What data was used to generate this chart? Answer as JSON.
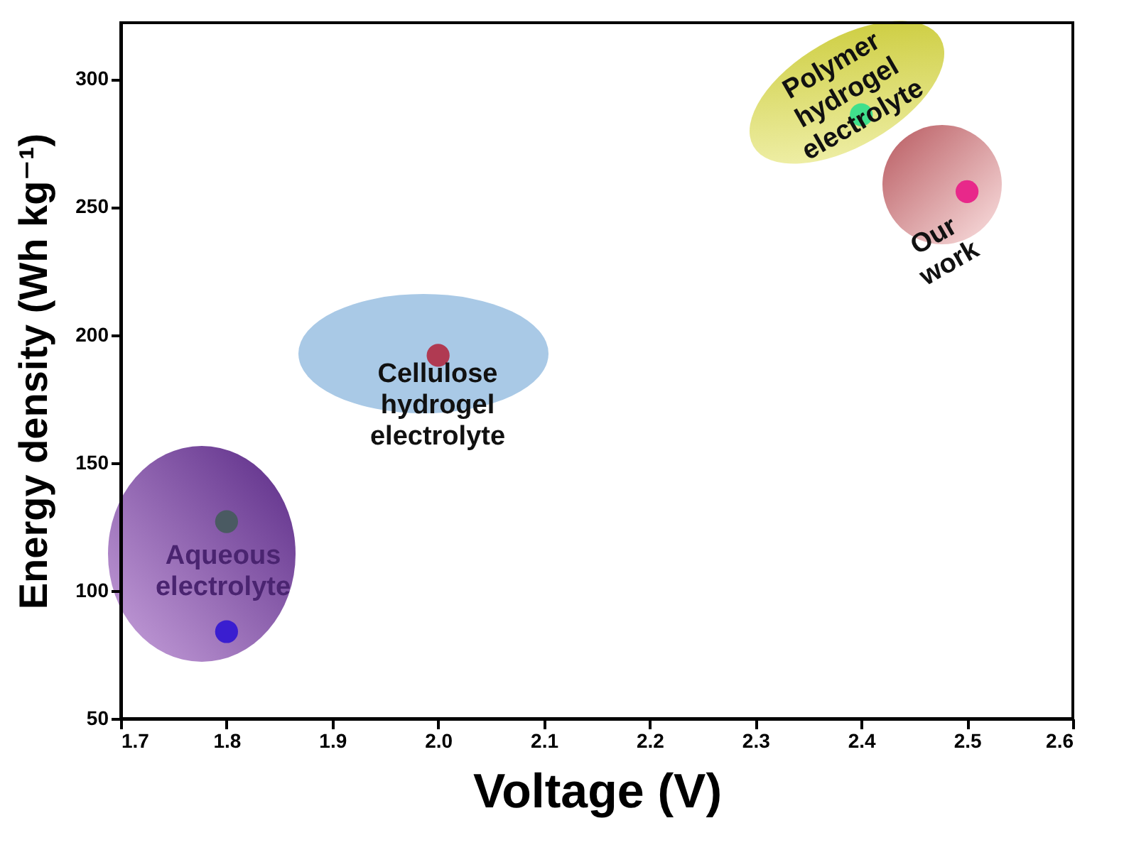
{
  "chart_data": {
    "type": "scatter",
    "xlabel": "Voltage (V)",
    "ylabel": "Energy density (Wh kg⁻¹)",
    "x": [
      1.8,
      1.8,
      2.0,
      2.4,
      2.5
    ],
    "values": [
      127,
      84,
      192,
      286,
      256
    ],
    "colors": [
      "#4a5a62",
      "#3a1ed0",
      "#b03a52",
      "#40e08c",
      "#e8288a"
    ],
    "xlim": [
      1.7,
      2.6
    ],
    "xticks": [
      1.7,
      1.8,
      1.9,
      {
        "value": 2,
        "label": "2.0"
      },
      2.1,
      2.2,
      2.3,
      2.4,
      2.5,
      2.6
    ],
    "ylim": [
      50,
      322
    ],
    "yticks": [
      50,
      100,
      150,
      200,
      250,
      300
    ],
    "marker": "circle",
    "grid": false,
    "annotations": [
      "Aqueous electrolyte",
      "Cellulose hydrogel electrolyte",
      "Polymer hydrogel electrolyte",
      "Our work"
    ]
  }
}
